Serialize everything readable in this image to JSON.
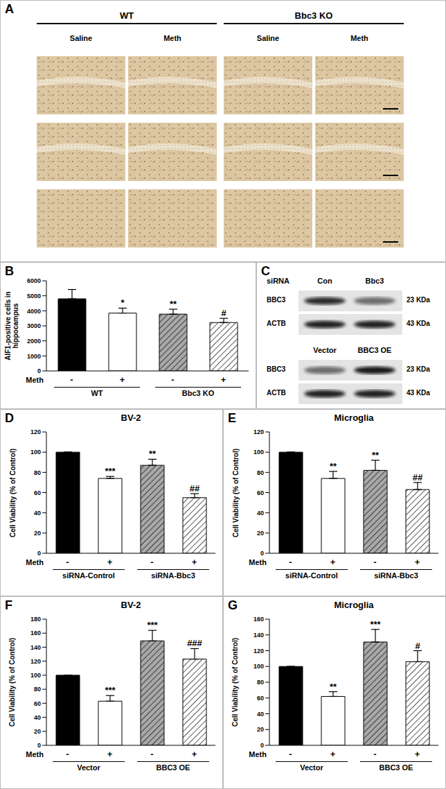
{
  "chart_data": [
    {
      "panel": "B",
      "type": "bar",
      "y_label": "AIF1-positive cells in hippocampus",
      "x_label": "Meth",
      "categories": [
        "-",
        "+",
        "-",
        "+"
      ],
      "groups": [
        "WT",
        "Bbc3 KO"
      ],
      "values": [
        4800,
        3850,
        3780,
        3220
      ],
      "errors": [
        620,
        330,
        330,
        280
      ],
      "annotations": [
        null,
        "*",
        "**",
        "#"
      ],
      "colors": [
        "#000000",
        "#ffffff",
        "#a8a8a8",
        "#ffffff"
      ],
      "ylim": [
        0,
        6000
      ],
      "yticks": [
        0,
        1000,
        2000,
        3000,
        4000,
        5000,
        6000
      ]
    },
    {
      "panel": "D",
      "type": "bar",
      "title": "BV-2",
      "y_label": "Cell Viability (% of Control)",
      "x_label": "Meth",
      "categories": [
        "-",
        "+",
        "-",
        "+"
      ],
      "groups": [
        "siRNA-Control",
        "siRNA-Bbc3"
      ],
      "values": [
        100,
        74,
        87,
        55
      ],
      "errors": [
        0,
        2,
        6,
        4
      ],
      "annotations": [
        null,
        "***",
        "**",
        "##"
      ],
      "colors": [
        "#000000",
        "#ffffff",
        "#a8a8a8",
        "#ffffff"
      ],
      "ylim": [
        0,
        120
      ],
      "yticks": [
        0,
        20,
        40,
        60,
        80,
        100,
        120
      ]
    },
    {
      "panel": "E",
      "type": "bar",
      "title": "Microglia",
      "y_label": "Cell Viability (% of Control)",
      "x_label": "Meth",
      "categories": [
        "-",
        "+",
        "-",
        "+"
      ],
      "groups": [
        "siRNA-Control",
        "siRNA-Bbc3"
      ],
      "values": [
        100,
        74,
        82,
        63
      ],
      "errors": [
        0,
        7,
        10,
        7
      ],
      "annotations": [
        null,
        "**",
        "**",
        "##"
      ],
      "colors": [
        "#000000",
        "#ffffff",
        "#a8a8a8",
        "#ffffff"
      ],
      "ylim": [
        0,
        120
      ],
      "yticks": [
        0,
        20,
        40,
        60,
        80,
        100,
        120
      ]
    },
    {
      "panel": "F",
      "type": "bar",
      "title": "BV-2",
      "y_label": "Cell Viability (% of Control)",
      "x_label": "Meth",
      "categories": [
        "-",
        "+",
        "-",
        "+"
      ],
      "groups": [
        "Vector",
        "BBC3 OE"
      ],
      "values": [
        100,
        63,
        149,
        123
      ],
      "errors": [
        0,
        8,
        15,
        15
      ],
      "annotations": [
        null,
        "***",
        "***",
        "###"
      ],
      "colors": [
        "#000000",
        "#ffffff",
        "#a8a8a8",
        "#ffffff"
      ],
      "ylim": [
        0,
        180
      ],
      "yticks": [
        0,
        20,
        40,
        60,
        80,
        100,
        120,
        140,
        160,
        180
      ]
    },
    {
      "panel": "G",
      "type": "bar",
      "title": "Microglia",
      "y_label": "Cell Viability (% of Control)",
      "x_label": "Meth",
      "categories": [
        "-",
        "+",
        "-",
        "+"
      ],
      "groups": [
        "Vector",
        "BBC3 OE"
      ],
      "values": [
        100,
        62,
        131,
        106
      ],
      "errors": [
        0,
        6,
        16,
        14
      ],
      "annotations": [
        null,
        "**",
        "***",
        "#"
      ],
      "colors": [
        "#000000",
        "#ffffff",
        "#a8a8a8",
        "#ffffff"
      ],
      "ylim": [
        0,
        160
      ],
      "yticks": [
        0,
        20,
        40,
        60,
        80,
        100,
        120,
        140,
        160
      ]
    }
  ],
  "panel_A": {
    "panel": "A",
    "groups": [
      {
        "label": "WT",
        "conditions": [
          "Saline",
          "Meth"
        ]
      },
      {
        "label": "Bbc3 KO",
        "conditions": [
          "Saline",
          "Meth"
        ]
      }
    ]
  },
  "panel_C": {
    "panel": "C",
    "blots": [
      {
        "header": "siRNA",
        "lanes": [
          "Con",
          "Bbc3"
        ],
        "rows": [
          {
            "protein": "BBC3",
            "size": "23 KDa"
          },
          {
            "protein": "ACTB",
            "size": "43 KDa"
          }
        ]
      },
      {
        "lanes": [
          "Vector",
          "BBC3 OE"
        ],
        "rows": [
          {
            "protein": "BBC3",
            "size": "23 KDa"
          },
          {
            "protein": "ACTB",
            "size": "43 KDa"
          }
        ]
      }
    ]
  }
}
